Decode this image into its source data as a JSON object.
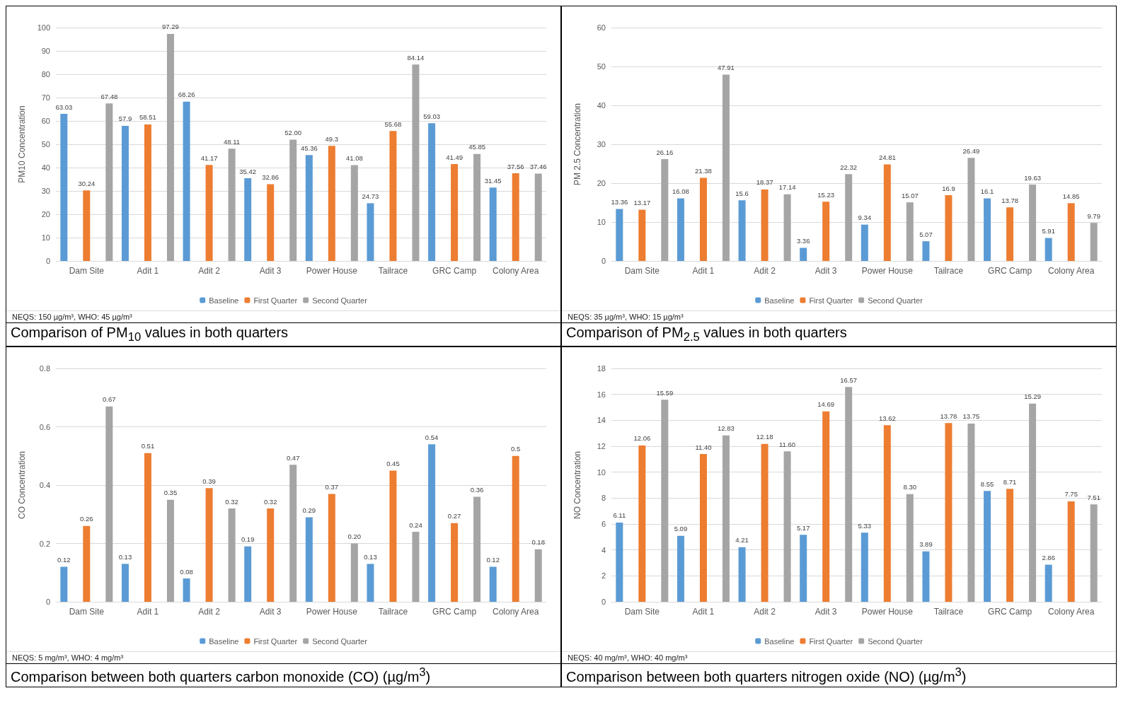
{
  "chart_data": [
    {
      "type": "bar",
      "title": "Comparison of PM$_{10}$ values in both quarters",
      "ylabel": "PM10 Concentration",
      "categories": [
        "Dam Site",
        "Adit 1",
        "Adit 2",
        "Adit 3",
        "Power House",
        "Tailrace",
        "GRC Camp",
        "Colony Area"
      ],
      "series": [
        {
          "name": "Baseline",
          "color": "#5b9bd5",
          "values": [
            63.03,
            57.9,
            68.26,
            35.42,
            45.36,
            24.73,
            59.03,
            31.45
          ],
          "value_labels": [
            "63.03",
            "57.9",
            "68.26",
            "35.42",
            "45.36",
            "24.73",
            "59.03",
            "31.45"
          ]
        },
        {
          "name": "First Quarter",
          "color": "#ed7d31",
          "values": [
            30.24,
            58.51,
            41.17,
            32.86,
            49.3,
            55.68,
            41.49,
            37.56
          ],
          "value_labels": [
            "30.24",
            "58.51",
            "41.17",
            "32.86",
            "49.3",
            "55.68",
            "41.49",
            "37.56"
          ]
        },
        {
          "name": "Second Quarter",
          "color": "#a5a5a5",
          "values": [
            67.48,
            97.29,
            48.11,
            52.0,
            41.08,
            84.14,
            45.85,
            37.46
          ],
          "value_labels": [
            "67.48",
            "97.29",
            "48.11",
            "52.00",
            "41.08",
            "84.14",
            "45.85",
            "37.46"
          ]
        }
      ],
      "ylim": [
        0,
        100
      ],
      "yticks": [
        0,
        10,
        20,
        30,
        40,
        50,
        60,
        70,
        80,
        90,
        100
      ],
      "grid": "y",
      "legend": "bottom",
      "annotations": [
        "NEQS: 150 µg/m³, WHO: 45 µg/m³"
      ]
    },
    {
      "type": "bar",
      "title": "Comparison of PM$_{2.5}$ values in both quarters",
      "ylabel": "PM 2.5 Concentration",
      "categories": [
        "Dam Site",
        "Adit 1",
        "Adit 2",
        "Adit 3",
        "Power House",
        "Tailrace",
        "GRC Camp",
        "Colony Area"
      ],
      "series": [
        {
          "name": "Baseline",
          "color": "#5b9bd5",
          "values": [
            13.36,
            16.08,
            15.6,
            3.36,
            9.34,
            5.07,
            16.1,
            5.91
          ],
          "value_labels": [
            "13.36",
            "16.08",
            "15.6",
            "3.36",
            "9.34",
            "5.07",
            "16.1",
            "5.91"
          ]
        },
        {
          "name": "First Quarter",
          "color": "#ed7d31",
          "values": [
            13.17,
            21.38,
            18.37,
            15.23,
            24.81,
            16.9,
            13.78,
            14.85
          ],
          "value_labels": [
            "13.17",
            "21.38",
            "18.37",
            "15.23",
            "24.81",
            "16.9",
            "13.78",
            "14.85"
          ]
        },
        {
          "name": "Second Quarter",
          "color": "#a5a5a5",
          "values": [
            26.16,
            47.91,
            17.14,
            22.32,
            15.07,
            26.49,
            19.63,
            9.79
          ],
          "value_labels": [
            "26.16",
            "47.91",
            "17.14",
            "22.32",
            "15.07",
            "26.49",
            "19.63",
            "9.79"
          ]
        }
      ],
      "ylim": [
        0,
        60
      ],
      "yticks": [
        0,
        10,
        20,
        30,
        40,
        50,
        60
      ],
      "grid": "y",
      "legend": "bottom",
      "annotations": [
        "NEQS: 35 µg/m³, WHO: 15 µg/m³"
      ]
    },
    {
      "type": "bar",
      "title": "Comparison between both quarters carbon monoxide (CO) (µg/m$^{3}$)",
      "ylabel": "CO Concentration",
      "categories": [
        "Dam Site",
        "Adit 1",
        "Adit 2",
        "Adit 3",
        "Power House",
        "Tailrace",
        "GRC Camp",
        "Colony Area"
      ],
      "series": [
        {
          "name": "Baseline",
          "color": "#5b9bd5",
          "values": [
            0.12,
            0.13,
            0.08,
            0.19,
            0.29,
            0.13,
            0.54,
            0.12
          ],
          "value_labels": [
            "0.12",
            "0.13",
            "0.08",
            "0.19",
            "0.29",
            "0.13",
            "0.54",
            "0.12"
          ]
        },
        {
          "name": "First Quarter",
          "color": "#ed7d31",
          "values": [
            0.26,
            0.51,
            0.39,
            0.32,
            0.37,
            0.45,
            0.27,
            0.5
          ],
          "value_labels": [
            "0.26",
            "0.51",
            "0.39",
            "0.32",
            "0.37",
            "0.45",
            "0.27",
            "0.5"
          ]
        },
        {
          "name": "Second Quarter",
          "color": "#a5a5a5",
          "values": [
            0.67,
            0.35,
            0.32,
            0.47,
            0.2,
            0.24,
            0.36,
            0.18
          ],
          "value_labels": [
            "0.67",
            "0.35",
            "0.32",
            "0.47",
            "0.20",
            "0.24",
            "0.36",
            "0.18"
          ]
        }
      ],
      "ylim": [
        0,
        0.8
      ],
      "yticks": [
        0,
        0.2,
        0.4,
        0.6,
        0.8
      ],
      "grid": "y",
      "legend": "bottom",
      "annotations": [
        "NEQS: 5 mg/m³, WHO: 4 mg/m³"
      ]
    },
    {
      "type": "bar",
      "title": "Comparison between both quarters nitrogen oxide (NO) (µg/m$^{3}$)",
      "ylabel": "NO Concentration",
      "categories": [
        "Dam Site",
        "Adit 1",
        "Adit 2",
        "Adit 3",
        "Power House",
        "Tailrace",
        "GRC Camp",
        "Colony Area"
      ],
      "series": [
        {
          "name": "Baseline",
          "color": "#5b9bd5",
          "values": [
            6.11,
            5.09,
            4.21,
            5.17,
            5.33,
            3.89,
            8.55,
            2.86
          ],
          "value_labels": [
            "6.11",
            "5.09",
            "4.21",
            "5.17",
            "5.33",
            "3.89",
            "8.55",
            "2.86"
          ]
        },
        {
          "name": "First Quarter",
          "color": "#ed7d31",
          "values": [
            12.06,
            11.4,
            12.18,
            14.69,
            13.62,
            13.78,
            8.71,
            7.75
          ],
          "value_labels": [
            "12.06",
            "11.40",
            "12.18",
            "14.69",
            "13.62",
            "13.78",
            "8.71",
            "7.75"
          ]
        },
        {
          "name": "Second Quarter",
          "color": "#a5a5a5",
          "values": [
            15.59,
            12.83,
            11.6,
            16.57,
            8.3,
            13.75,
            15.29,
            7.51
          ],
          "value_labels": [
            "15.59",
            "12.83",
            "11.60",
            "16.57",
            "8.30",
            "13.75",
            "15.29",
            "7.51"
          ]
        }
      ],
      "ylim": [
        0,
        18
      ],
      "yticks": [
        0,
        2,
        4,
        6,
        8,
        10,
        12,
        14,
        16,
        18
      ],
      "grid": "y",
      "legend": "bottom",
      "annotations": [
        "NEQS: 40 mg/m³, WHO: 40 mg/m³"
      ]
    }
  ]
}
